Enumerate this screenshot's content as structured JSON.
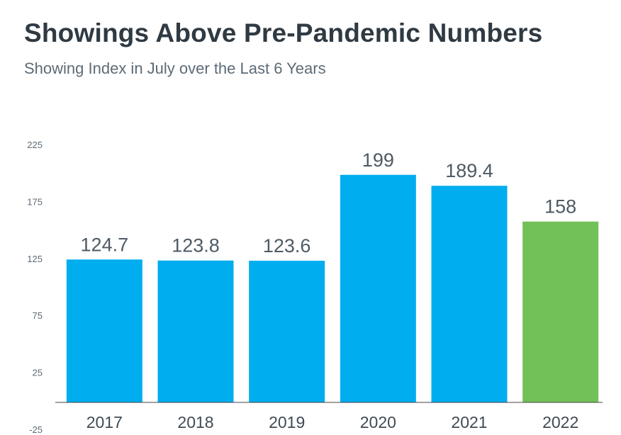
{
  "chart_data": {
    "type": "bar",
    "title": "Showings Above Pre-Pandemic Numbers",
    "subtitle": "Showing Index in July over the Last 6 Years",
    "xlabel": "",
    "ylabel": "",
    "categories": [
      "2017",
      "2018",
      "2019",
      "2020",
      "2021",
      "2022"
    ],
    "values": [
      124.7,
      123.8,
      123.6,
      199,
      189.4,
      158
    ],
    "data_labels": [
      "124.7",
      "123.8",
      "123.6",
      "199",
      "189.4",
      "158"
    ],
    "ylim": [
      -25,
      225
    ],
    "yticks": [
      -25,
      25,
      75,
      125,
      175,
      225
    ],
    "grid": false,
    "legend": "none",
    "bar_colors": [
      "#00adef",
      "#00adef",
      "#00adef",
      "#00adef",
      "#00adef",
      "#72c058"
    ]
  }
}
